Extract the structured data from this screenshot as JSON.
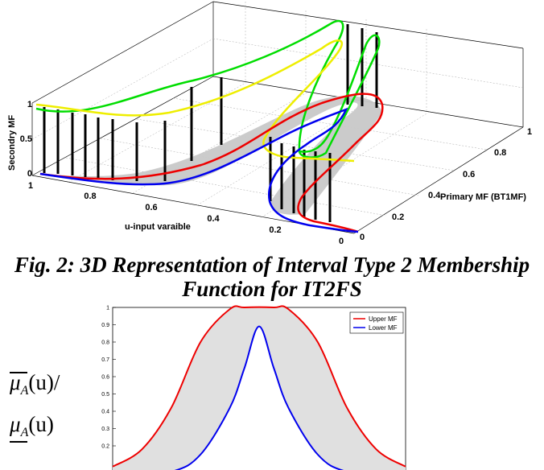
{
  "chart_data": [
    {
      "type": "surface3d",
      "axes": {
        "z_label": "Secondry MF",
        "x_label": "u-input varaible",
        "y_label": "Primary MF (BT1MF)",
        "z_ticks": [
          "1",
          "0.5",
          "0"
        ],
        "x_ticks": [
          "1",
          "0.8",
          "0.6",
          "0.4",
          "0.2",
          "0"
        ],
        "y_ticks": [
          "0",
          "0.2",
          "0.4",
          "0.6",
          "0.8",
          "1"
        ]
      },
      "series": [
        {
          "color": "#00dd00"
        },
        {
          "color": "#eeee00"
        },
        {
          "color": "#ee0000"
        },
        {
          "color": "#0000ee"
        }
      ]
    },
    {
      "type": "line",
      "ylim": [
        0,
        1
      ],
      "y_ticks": [
        "1",
        "0.9",
        "0.8",
        "0.7",
        "0.6",
        "0.5",
        "0.4",
        "0.3",
        "0.2"
      ],
      "series": [
        {
          "name": "Upper MF",
          "color": "#ee0000",
          "x": [
            0,
            0.1,
            0.2,
            0.3,
            0.4,
            0.45,
            0.55,
            0.6,
            0.7,
            0.8,
            0.9,
            1.0
          ],
          "values": [
            0.08,
            0.18,
            0.42,
            0.8,
            0.99,
            1.0,
            1.0,
            0.99,
            0.8,
            0.42,
            0.18,
            0.08
          ]
        },
        {
          "name": "Lower MF",
          "color": "#0000ee",
          "x": [
            0,
            0.2,
            0.3,
            0.4,
            0.45,
            0.5,
            0.55,
            0.6,
            0.7,
            0.8,
            1.0
          ],
          "values": [
            0.0,
            0.05,
            0.15,
            0.42,
            0.65,
            0.89,
            0.65,
            0.42,
            0.15,
            0.05,
            0.0
          ]
        }
      ],
      "fill_between": {
        "color": "#e0e0e0"
      }
    }
  ],
  "captions": {
    "fig2_line1": "Fig. 2: 3D Representation of Interval Type 2 Membership",
    "fig2_line2": "Function for IT2FS"
  },
  "formula": {
    "upper_symbol": "μ",
    "upper_sub": "A",
    "upper_arg": "(u)",
    "slash": "/",
    "lower_symbol": "μ",
    "lower_sub": "A",
    "lower_arg": "(u)"
  }
}
